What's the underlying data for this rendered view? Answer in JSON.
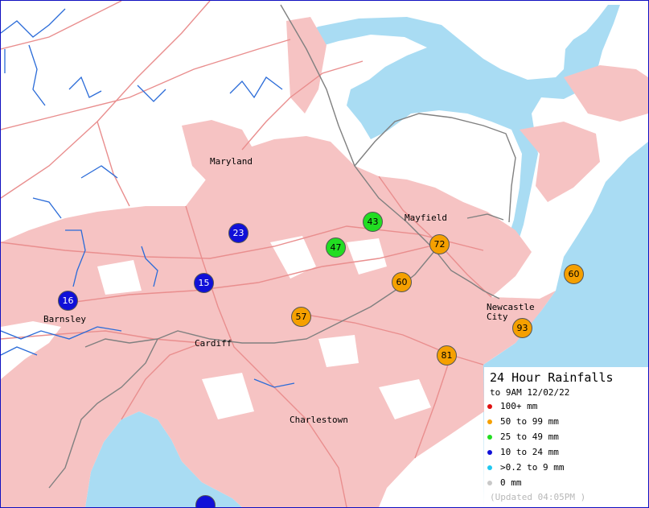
{
  "colors": {
    "water": "#a9dcf3",
    "urban": "#f6c3c3",
    "road": "#e98e8e",
    "river": "#2a6bd8",
    "rail": "#808080",
    "orange": "#f5a000",
    "green": "#22dd22",
    "blue": "#1010d8"
  },
  "places": [
    {
      "id": "maryland",
      "label": "Maryland"
    },
    {
      "id": "mayfield",
      "label": "Mayfield"
    },
    {
      "id": "newcastle1",
      "label": "Newcastle"
    },
    {
      "id": "newcastle2",
      "label": "City"
    },
    {
      "id": "barnsley",
      "label": "Barnsley"
    },
    {
      "id": "cardiff",
      "label": "Cardiff"
    },
    {
      "id": "charlestown",
      "label": "Charlestown"
    }
  ],
  "stations": [
    {
      "value": "43",
      "band": "green"
    },
    {
      "value": "47",
      "band": "green"
    },
    {
      "value": "72",
      "band": "orange"
    },
    {
      "value": "60",
      "band": "orange"
    },
    {
      "value": "60",
      "band": "orange"
    },
    {
      "value": "57",
      "band": "orange"
    },
    {
      "value": "93",
      "band": "orange"
    },
    {
      "value": "81",
      "band": "orange"
    },
    {
      "value": "23",
      "band": "blue"
    },
    {
      "value": "15",
      "band": "blue"
    },
    {
      "value": "16",
      "band": "blue"
    },
    {
      "value": "",
      "band": "blue"
    }
  ],
  "legend": {
    "title": "24 Hour Rainfalls",
    "subtitle": "to 9AM 12/02/22",
    "items": [
      {
        "label": "100+ mm",
        "color": "#e01010"
      },
      {
        "label": "50  to 99 mm",
        "color": "#f5a000"
      },
      {
        "label": "25  to 49 mm",
        "color": "#22dd22"
      },
      {
        "label": "10  to 24 mm",
        "color": "#1010d8"
      },
      {
        "label": ">0.2 to 9 mm",
        "color": "#20c8f0"
      },
      {
        "label": "0 mm",
        "color": "#c8c8c8"
      }
    ],
    "updated": "(Updated 04:05PM  )"
  }
}
